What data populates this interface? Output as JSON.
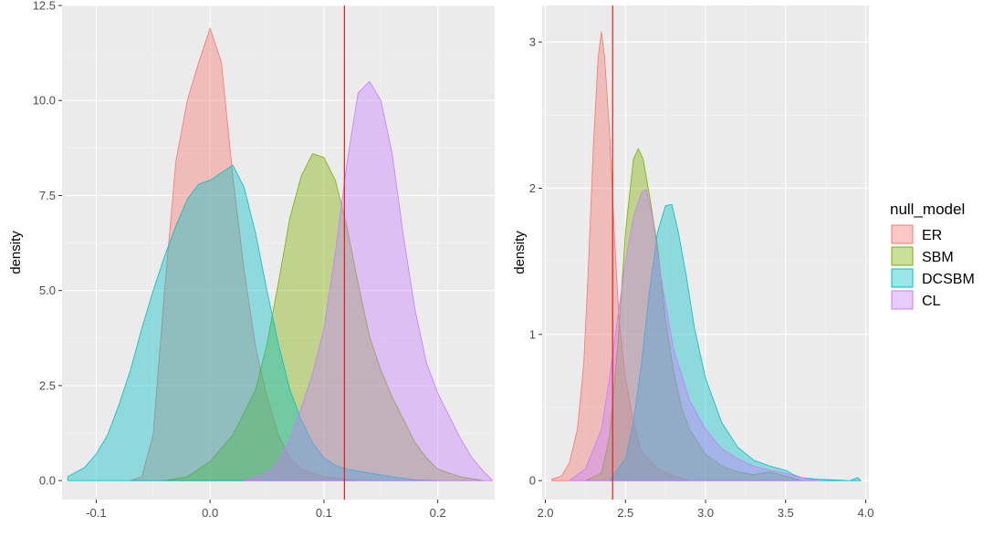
{
  "legend": {
    "title": "null_model",
    "entries": [
      {
        "label": "ER",
        "color": "#F8766D"
      },
      {
        "label": "SBM",
        "color": "#7CAE00"
      },
      {
        "label": "DCSBM",
        "color": "#00BFC4"
      },
      {
        "label": "CL",
        "color": "#C77CFF"
      }
    ]
  },
  "chart_data": [
    {
      "type": "area",
      "subtype": "density",
      "title": "",
      "xlabel": "",
      "ylabel": "density",
      "xlim": [
        -0.13,
        0.25
      ],
      "ylim": [
        -0.5,
        12.5
      ],
      "x_ticks": [
        -0.1,
        0.0,
        0.1,
        0.2
      ],
      "x_tick_labels": [
        "-0.1",
        "0.0",
        "0.1",
        "0.2"
      ],
      "y_ticks": [
        0,
        2.5,
        5,
        7.5,
        10,
        12.5
      ],
      "y_tick_labels": [
        "0.0",
        "2.5",
        "5.0",
        "7.5",
        "10.0",
        "12.5"
      ],
      "grid": true,
      "vline": {
        "x": 0.118,
        "color": "#E41A1C"
      },
      "series": [
        {
          "name": "ER",
          "color": "#F8766D",
          "points": [
            [
              -0.07,
              0
            ],
            [
              -0.06,
              0.1
            ],
            [
              -0.05,
              1.2
            ],
            [
              -0.04,
              5.0
            ],
            [
              -0.03,
              8.4
            ],
            [
              -0.02,
              10.0
            ],
            [
              -0.01,
              11.0
            ],
            [
              0.0,
              11.9
            ],
            [
              0.01,
              11.0
            ],
            [
              0.02,
              8.0
            ],
            [
              0.03,
              5.5
            ],
            [
              0.04,
              3.5
            ],
            [
              0.05,
              2.2
            ],
            [
              0.06,
              1.2
            ],
            [
              0.07,
              0.6
            ],
            [
              0.08,
              0.3
            ],
            [
              0.1,
              0.1
            ],
            [
              0.13,
              0
            ]
          ]
        },
        {
          "name": "SBM",
          "color": "#7CAE00",
          "points": [
            [
              -0.04,
              0
            ],
            [
              -0.02,
              0.1
            ],
            [
              0.0,
              0.5
            ],
            [
              0.02,
              1.2
            ],
            [
              0.04,
              2.4
            ],
            [
              0.05,
              3.6
            ],
            [
              0.06,
              5.2
            ],
            [
              0.07,
              6.9
            ],
            [
              0.08,
              8.0
            ],
            [
              0.09,
              8.6
            ],
            [
              0.1,
              8.5
            ],
            [
              0.11,
              7.9
            ],
            [
              0.12,
              6.7
            ],
            [
              0.13,
              5.2
            ],
            [
              0.14,
              3.8
            ],
            [
              0.15,
              2.9
            ],
            [
              0.16,
              2.2
            ],
            [
              0.17,
              1.6
            ],
            [
              0.18,
              1.0
            ],
            [
              0.19,
              0.6
            ],
            [
              0.2,
              0.3
            ],
            [
              0.22,
              0.1
            ],
            [
              0.24,
              0
            ]
          ]
        },
        {
          "name": "DCSBM",
          "color": "#00BFC4",
          "points": [
            [
              -0.125,
              0.1
            ],
            [
              -0.11,
              0.35
            ],
            [
              -0.1,
              0.7
            ],
            [
              -0.09,
              1.2
            ],
            [
              -0.08,
              2.0
            ],
            [
              -0.07,
              2.9
            ],
            [
              -0.06,
              4.0
            ],
            [
              -0.05,
              5.0
            ],
            [
              -0.04,
              5.9
            ],
            [
              -0.03,
              6.7
            ],
            [
              -0.02,
              7.4
            ],
            [
              -0.01,
              7.8
            ],
            [
              0.0,
              7.9
            ],
            [
              0.01,
              8.1
            ],
            [
              0.02,
              8.3
            ],
            [
              0.03,
              7.7
            ],
            [
              0.04,
              6.5
            ],
            [
              0.05,
              5.0
            ],
            [
              0.06,
              3.6
            ],
            [
              0.07,
              2.4
            ],
            [
              0.08,
              1.6
            ],
            [
              0.09,
              1.0
            ],
            [
              0.1,
              0.6
            ],
            [
              0.11,
              0.4
            ],
            [
              0.12,
              0.3
            ],
            [
              0.13,
              0.25
            ],
            [
              0.14,
              0.2
            ],
            [
              0.16,
              0.1
            ],
            [
              0.18,
              0.02
            ],
            [
              0.2,
              0
            ]
          ]
        },
        {
          "name": "CL",
          "color": "#C77CFF",
          "points": [
            [
              0.03,
              0
            ],
            [
              0.05,
              0.2
            ],
            [
              0.06,
              0.5
            ],
            [
              0.07,
              1.1
            ],
            [
              0.08,
              1.9
            ],
            [
              0.09,
              2.8
            ],
            [
              0.1,
              4.0
            ],
            [
              0.11,
              6.0
            ],
            [
              0.12,
              8.3
            ],
            [
              0.13,
              10.2
            ],
            [
              0.14,
              10.5
            ],
            [
              0.15,
              10.0
            ],
            [
              0.16,
              8.6
            ],
            [
              0.17,
              6.4
            ],
            [
              0.18,
              4.5
            ],
            [
              0.19,
              3.1
            ],
            [
              0.2,
              2.3
            ],
            [
              0.21,
              1.7
            ],
            [
              0.22,
              1.1
            ],
            [
              0.23,
              0.6
            ],
            [
              0.24,
              0.25
            ],
            [
              0.245,
              0.1
            ],
            [
              0.248,
              0
            ]
          ]
        }
      ]
    },
    {
      "type": "area",
      "subtype": "density",
      "title": "",
      "xlabel": "",
      "ylabel": "density",
      "xlim": [
        1.98,
        4.02
      ],
      "ylim": [
        -0.13,
        3.25
      ],
      "x_ticks": [
        2.0,
        2.5,
        3.0,
        3.5,
        4.0
      ],
      "x_tick_labels": [
        "2.0",
        "2.5",
        "3.0",
        "3.5",
        "4.0"
      ],
      "y_ticks": [
        0,
        1,
        2,
        3
      ],
      "y_tick_labels": [
        "0",
        "1",
        "2",
        "3"
      ],
      "grid": true,
      "vline": {
        "x": 2.42,
        "color": "#E41A1C"
      },
      "series": [
        {
          "name": "ER",
          "color": "#F8766D",
          "points": [
            [
              2.04,
              0.01
            ],
            [
              2.1,
              0.03
            ],
            [
              2.15,
              0.12
            ],
            [
              2.2,
              0.35
            ],
            [
              2.24,
              0.8
            ],
            [
              2.27,
              1.5
            ],
            [
              2.3,
              2.3
            ],
            [
              2.33,
              2.9
            ],
            [
              2.35,
              3.07
            ],
            [
              2.37,
              2.9
            ],
            [
              2.4,
              2.4
            ],
            [
              2.43,
              1.7
            ],
            [
              2.46,
              1.1
            ],
            [
              2.5,
              0.7
            ],
            [
              2.55,
              0.4
            ],
            [
              2.6,
              0.2
            ],
            [
              2.7,
              0.08
            ],
            [
              2.8,
              0.03
            ],
            [
              2.9,
              0
            ]
          ]
        },
        {
          "name": "SBM",
          "color": "#7CAE00",
          "points": [
            [
              2.25,
              0
            ],
            [
              2.35,
              0.05
            ],
            [
              2.4,
              0.3
            ],
            [
              2.45,
              0.9
            ],
            [
              2.5,
              1.7
            ],
            [
              2.55,
              2.2
            ],
            [
              2.58,
              2.27
            ],
            [
              2.61,
              2.2
            ],
            [
              2.65,
              1.95
            ],
            [
              2.7,
              1.6
            ],
            [
              2.75,
              1.1
            ],
            [
              2.8,
              0.75
            ],
            [
              2.85,
              0.5
            ],
            [
              2.9,
              0.35
            ],
            [
              3.0,
              0.18
            ],
            [
              3.1,
              0.1
            ],
            [
              3.2,
              0.06
            ],
            [
              3.3,
              0.04
            ],
            [
              3.4,
              0.06
            ],
            [
              3.5,
              0.03
            ],
            [
              3.6,
              0
            ]
          ]
        },
        {
          "name": "DCSBM",
          "color": "#00BFC4",
          "points": [
            [
              2.4,
              0
            ],
            [
              2.5,
              0.15
            ],
            [
              2.55,
              0.4
            ],
            [
              2.6,
              0.8
            ],
            [
              2.65,
              1.3
            ],
            [
              2.7,
              1.7
            ],
            [
              2.75,
              1.88
            ],
            [
              2.79,
              1.89
            ],
            [
              2.83,
              1.7
            ],
            [
              2.88,
              1.4
            ],
            [
              2.93,
              1.05
            ],
            [
              3.0,
              0.7
            ],
            [
              3.1,
              0.4
            ],
            [
              3.2,
              0.23
            ],
            [
              3.3,
              0.14
            ],
            [
              3.4,
              0.1
            ],
            [
              3.5,
              0.07
            ],
            [
              3.55,
              0.04
            ],
            [
              3.6,
              0.02
            ],
            [
              3.7,
              0.01
            ],
            [
              3.9,
              0
            ],
            [
              3.95,
              0.02
            ],
            [
              3.97,
              0
            ]
          ]
        },
        {
          "name": "CL",
          "color": "#C77CFF",
          "points": [
            [
              2.15,
              0
            ],
            [
              2.25,
              0.08
            ],
            [
              2.35,
              0.35
            ],
            [
              2.4,
              0.7
            ],
            [
              2.45,
              1.1
            ],
            [
              2.5,
              1.5
            ],
            [
              2.55,
              1.8
            ],
            [
              2.6,
              1.97
            ],
            [
              2.63,
              1.99
            ],
            [
              2.67,
              1.8
            ],
            [
              2.72,
              1.4
            ],
            [
              2.8,
              0.9
            ],
            [
              2.9,
              0.55
            ],
            [
              3.0,
              0.35
            ],
            [
              3.1,
              0.22
            ],
            [
              3.2,
              0.15
            ],
            [
              3.3,
              0.1
            ],
            [
              3.4,
              0.07
            ],
            [
              3.5,
              0.05
            ],
            [
              3.6,
              0.02
            ],
            [
              3.7,
              0
            ]
          ]
        }
      ]
    }
  ]
}
